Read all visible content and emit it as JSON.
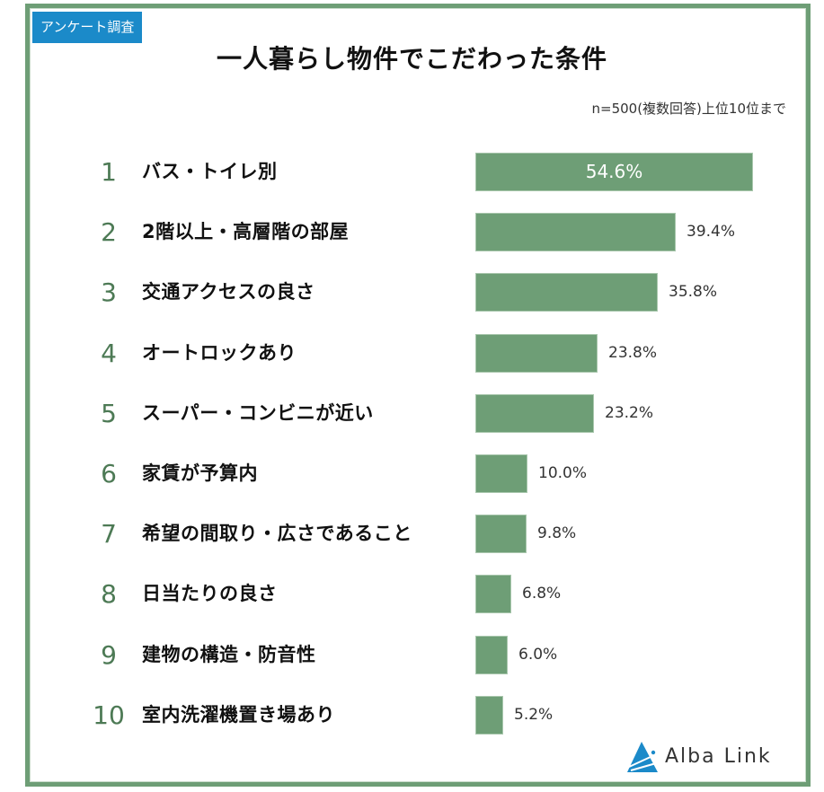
{
  "badge": "アンケート調査",
  "title": "一人暮らし物件でこだわった条件",
  "note": "n=500(複数回答)上位10位まで",
  "brand": {
    "name": "Alba Link",
    "bar_color": "#6e9e76",
    "badge_color": "#1b8ac9"
  },
  "items": [
    {
      "rank": "1",
      "label": "バス・トイレ別",
      "value": 54.6,
      "value_label": "54.6%"
    },
    {
      "rank": "2",
      "label": "2階以上・高層階の部屋",
      "value": 39.4,
      "value_label": "39.4%"
    },
    {
      "rank": "3",
      "label": "交通アクセスの良さ",
      "value": 35.8,
      "value_label": "35.8%"
    },
    {
      "rank": "4",
      "label": "オートロックあり",
      "value": 23.8,
      "value_label": "23.8%"
    },
    {
      "rank": "5",
      "label": "スーパー・コンビニが近い",
      "value": 23.2,
      "value_label": "23.2%"
    },
    {
      "rank": "6",
      "label": "家賃が予算内",
      "value": 10.0,
      "value_label": "10.0%"
    },
    {
      "rank": "7",
      "label": "希望の間取り・広さであること",
      "value": 9.8,
      "value_label": "9.8%"
    },
    {
      "rank": "8",
      "label": "日当たりの良さ",
      "value": 6.8,
      "value_label": "6.8%"
    },
    {
      "rank": "9",
      "label": "建物の構造・防音性",
      "value": 6.0,
      "value_label": "6.0%"
    },
    {
      "rank": "10",
      "label": "室内洗濯機置き場あり",
      "value": 5.2,
      "value_label": "5.2%"
    }
  ],
  "chart_data": {
    "type": "bar",
    "orientation": "horizontal",
    "title": "一人暮らし物件でこだわった条件",
    "subtitle": "n=500(複数回答)上位10位まで",
    "categories": [
      "バス・トイレ別",
      "2階以上・高層階の部屋",
      "交通アクセスの良さ",
      "オートロックあり",
      "スーパー・コンビニが近い",
      "家賃が予算内",
      "希望の間取り・広さであること",
      "日当たりの良さ",
      "建物の構造・防音性",
      "室内洗濯機置き場あり"
    ],
    "values": [
      54.6,
      39.4,
      35.8,
      23.8,
      23.2,
      10.0,
      9.8,
      6.8,
      6.0,
      5.2
    ],
    "unit": "%",
    "xlabel": "",
    "ylabel": "",
    "grid": false,
    "legend": null
  }
}
